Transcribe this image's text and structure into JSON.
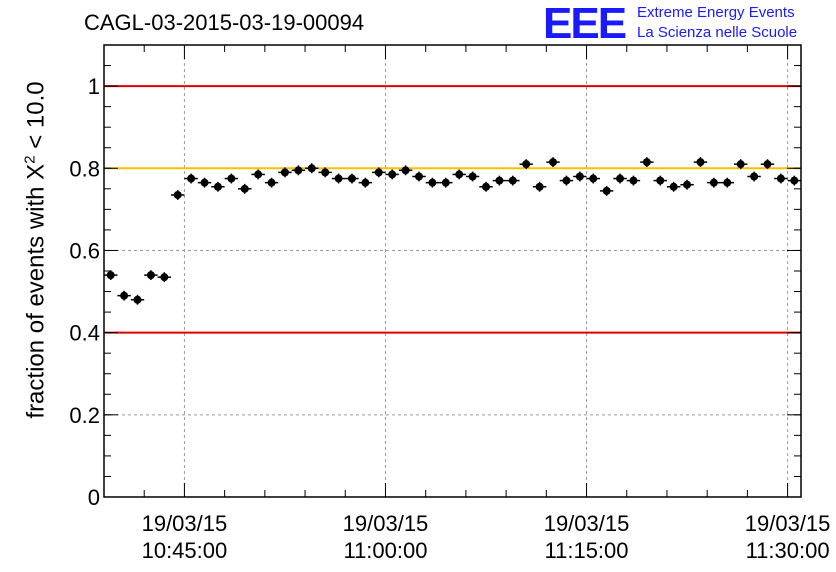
{
  "chart_data": {
    "type": "scatter",
    "title": "CAGL-03-2015-03-19-00094",
    "ylabel_prefix": "fraction of events with X",
    "ylabel_sup": "2",
    "ylabel_suffix": " < 10.0",
    "xlabel": "",
    "ylim": [
      0,
      1.1
    ],
    "y_ticks": [
      0,
      0.2,
      0.4,
      0.6,
      0.8,
      1
    ],
    "y_tick_labels": [
      "0",
      "0.2",
      "0.4",
      "0.6",
      "0.8",
      "1"
    ],
    "xlim": [
      "10:39:00",
      "11:31:00"
    ],
    "x_ticks": [
      "10:45:00",
      "11:00:00",
      "11:15:00",
      "11:30:00"
    ],
    "x_tick_dates": [
      "19/03/15",
      "19/03/15",
      "19/03/15",
      "19/03/15"
    ],
    "grid": true,
    "reference_lines": [
      {
        "y": 1.0,
        "color": "#e00000"
      },
      {
        "y": 0.8,
        "color": "#f5c000"
      },
      {
        "y": 0.4,
        "color": "#e00000"
      }
    ],
    "marker_color": "#000000",
    "points": [
      {
        "x": "10:39:30",
        "y": 0.54
      },
      {
        "x": "10:40:30",
        "y": 0.49
      },
      {
        "x": "10:41:30",
        "y": 0.48
      },
      {
        "x": "10:42:30",
        "y": 0.54
      },
      {
        "x": "10:43:30",
        "y": 0.535
      },
      {
        "x": "10:44:30",
        "y": 0.735
      },
      {
        "x": "10:45:30",
        "y": 0.775
      },
      {
        "x": "10:46:30",
        "y": 0.765
      },
      {
        "x": "10:47:30",
        "y": 0.755
      },
      {
        "x": "10:48:30",
        "y": 0.775
      },
      {
        "x": "10:49:30",
        "y": 0.75
      },
      {
        "x": "10:50:30",
        "y": 0.785
      },
      {
        "x": "10:51:30",
        "y": 0.765
      },
      {
        "x": "10:52:30",
        "y": 0.79
      },
      {
        "x": "10:53:30",
        "y": 0.795
      },
      {
        "x": "10:54:30",
        "y": 0.8
      },
      {
        "x": "10:55:30",
        "y": 0.79
      },
      {
        "x": "10:56:30",
        "y": 0.775
      },
      {
        "x": "10:57:30",
        "y": 0.775
      },
      {
        "x": "10:58:30",
        "y": 0.765
      },
      {
        "x": "10:59:30",
        "y": 0.79
      },
      {
        "x": "11:00:30",
        "y": 0.785
      },
      {
        "x": "11:01:30",
        "y": 0.795
      },
      {
        "x": "11:02:30",
        "y": 0.78
      },
      {
        "x": "11:03:30",
        "y": 0.765
      },
      {
        "x": "11:04:30",
        "y": 0.765
      },
      {
        "x": "11:05:30",
        "y": 0.785
      },
      {
        "x": "11:06:30",
        "y": 0.78
      },
      {
        "x": "11:07:30",
        "y": 0.755
      },
      {
        "x": "11:08:30",
        "y": 0.77
      },
      {
        "x": "11:09:30",
        "y": 0.77
      },
      {
        "x": "11:10:30",
        "y": 0.81
      },
      {
        "x": "11:11:30",
        "y": 0.755
      },
      {
        "x": "11:12:30",
        "y": 0.815
      },
      {
        "x": "11:13:30",
        "y": 0.77
      },
      {
        "x": "11:14:30",
        "y": 0.78
      },
      {
        "x": "11:15:30",
        "y": 0.775
      },
      {
        "x": "11:16:30",
        "y": 0.745
      },
      {
        "x": "11:17:30",
        "y": 0.775
      },
      {
        "x": "11:18:30",
        "y": 0.77
      },
      {
        "x": "11:19:30",
        "y": 0.815
      },
      {
        "x": "11:20:30",
        "y": 0.77
      },
      {
        "x": "11:21:30",
        "y": 0.755
      },
      {
        "x": "11:22:30",
        "y": 0.76
      },
      {
        "x": "11:23:30",
        "y": 0.815
      },
      {
        "x": "11:24:30",
        "y": 0.765
      },
      {
        "x": "11:25:30",
        "y": 0.765
      },
      {
        "x": "11:26:30",
        "y": 0.81
      },
      {
        "x": "11:27:30",
        "y": 0.78
      },
      {
        "x": "11:28:30",
        "y": 0.81
      },
      {
        "x": "11:29:30",
        "y": 0.775
      },
      {
        "x": "11:30:30",
        "y": 0.77
      }
    ],
    "y_error": 0.012
  },
  "logo": {
    "mark": "EEE",
    "line1": "Extreme Energy Events",
    "line2": "La Scienza nelle Scuole",
    "color": "#1a1aff"
  }
}
